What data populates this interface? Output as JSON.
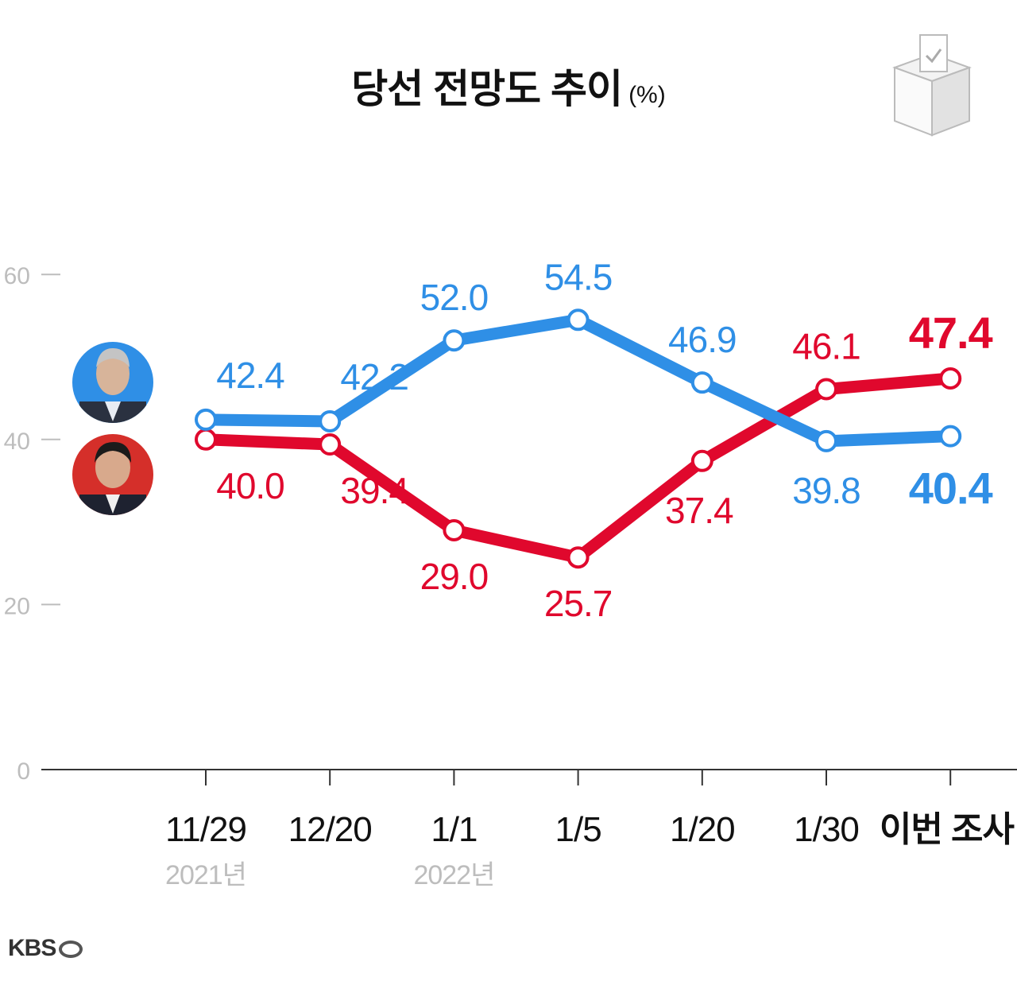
{
  "title": "당선 전망도 추이",
  "unit": "(%)",
  "logo": "KBS",
  "colors": {
    "blue": "#2f8fe6",
    "red": "#e0082d",
    "axis": "#bdbdbd",
    "dark": "#111111"
  },
  "icons": {
    "ballot_box": "ballot-box-icon",
    "logo_ring": "kbs-ring-icon"
  },
  "chart_data": {
    "type": "line",
    "categories": [
      "11/29",
      "12/20",
      "1/1",
      "1/5",
      "1/20",
      "1/30",
      "이번 조사"
    ],
    "category_sublabels": [
      "2021년",
      "",
      "2022년",
      "",
      "",
      "",
      ""
    ],
    "ylim": [
      0,
      60
    ],
    "yticks": [
      "0",
      "20",
      "40",
      "60"
    ],
    "grid": false,
    "series": [
      {
        "color": "#2f8fe6",
        "labels": [
          "42.4",
          "42.2",
          "52.0",
          "54.5",
          "46.9",
          "39.8",
          "40.4"
        ],
        "values": [
          42.4,
          42.2,
          52.0,
          54.5,
          46.9,
          39.8,
          40.4
        ]
      },
      {
        "color": "#e0082d",
        "labels": [
          "40.0",
          "39.4",
          "29.0",
          "25.7",
          "37.4",
          "46.1",
          "47.4"
        ],
        "values": [
          40.0,
          39.4,
          29.0,
          25.7,
          37.4,
          46.1,
          47.4
        ]
      }
    ]
  }
}
